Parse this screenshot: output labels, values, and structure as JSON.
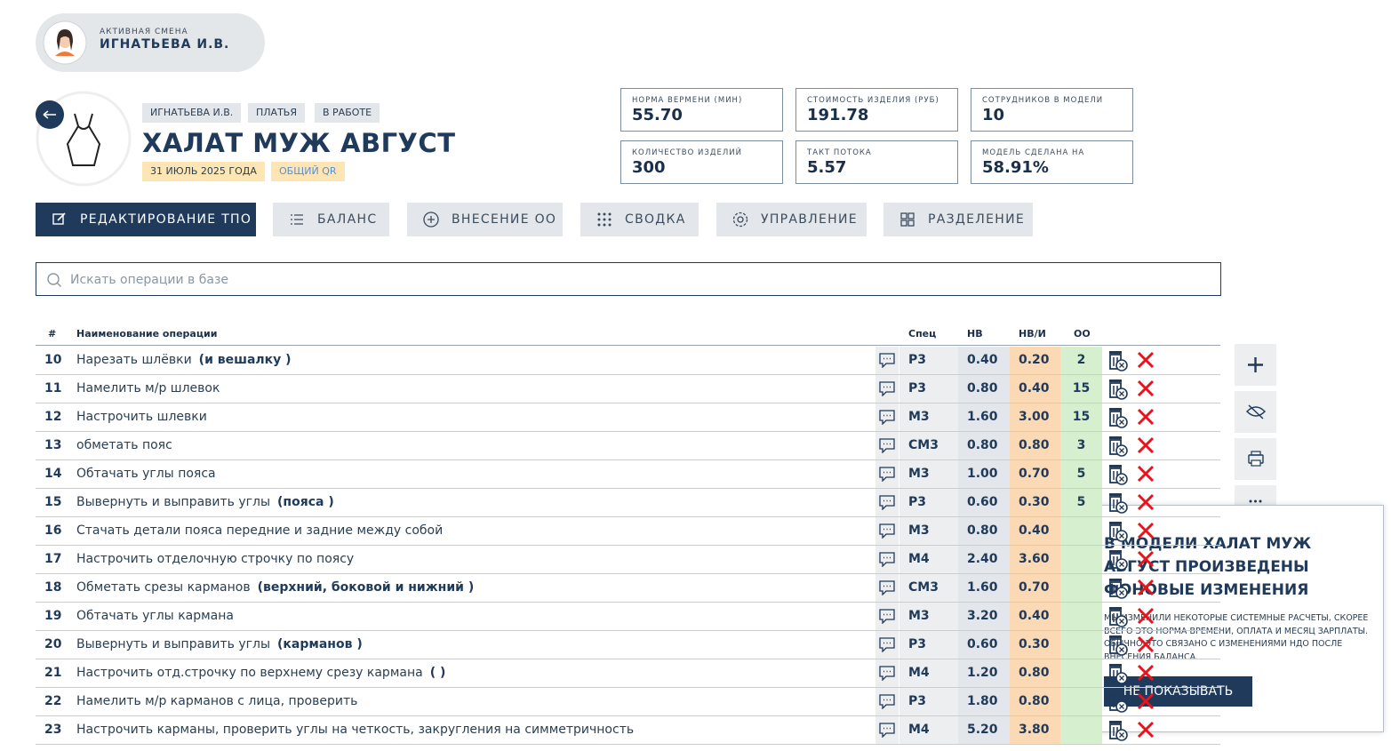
{
  "shift": {
    "label": "АКТИВНАЯ СМЕНА",
    "name": "ИГНАТЬЕВА И.В."
  },
  "model": {
    "tags": [
      "ИГНАТЬЕВА И.В.",
      "ПЛАТЬЯ",
      "В РАБОТЕ"
    ],
    "title": "ХАЛАТ МУЖ АВГУСТ",
    "date": "31 ИЮЛЬ 2025 ГОДА",
    "qr": "ОБЩИЙ QR"
  },
  "stats": [
    {
      "label": "НОРМА ВЕРМЕНИ (МИН)",
      "value": "55.70"
    },
    {
      "label": "СТОИМОСТЬ ИЗДЕЛИЯ (РУБ)",
      "value": "191.78"
    },
    {
      "label": "СОТРУДНИКОВ В МОДЕЛИ",
      "value": "10"
    },
    {
      "label": "КОЛИЧЕСТВО ИЗДЕЛИЙ",
      "value": "300"
    },
    {
      "label": "ТАКТ ПОТОКА",
      "value": "5.57"
    },
    {
      "label": "МОДЕЛЬ СДЕЛАНА НА",
      "value": "58.91%"
    }
  ],
  "tabs": [
    "РЕДАКТИРОВАНИЕ ТПО",
    "БАЛАНС",
    "ВНЕСЕНИЕ ОО",
    "СВОДКА",
    "УПРАВЛЕНИЕ",
    "РАЗДЕЛЕНИЕ"
  ],
  "search": {
    "placeholder": "Искать операции в базе"
  },
  "table": {
    "headers": [
      "#",
      "Наименование операции",
      "Спец",
      "НВ",
      "НВ/И",
      "ОО"
    ],
    "rows": [
      {
        "num": "10",
        "name": "Нарезать шлёвки",
        "note": "(и вешалку )",
        "spec": "Р3",
        "nv": "0.40",
        "nvi": "0.20",
        "oo": "2"
      },
      {
        "num": "11",
        "name": "Намелить м/р шлевок",
        "note": null,
        "spec": "Р3",
        "nv": "0.80",
        "nvi": "0.40",
        "oo": "15"
      },
      {
        "num": "12",
        "name": "Настрочить шлевки",
        "note": null,
        "spec": "М3",
        "nv": "1.60",
        "nvi": "3.00",
        "oo": "15"
      },
      {
        "num": "13",
        "name": "обметать пояс",
        "note": null,
        "spec": "СМ3",
        "nv": "0.80",
        "nvi": "0.80",
        "oo": "3"
      },
      {
        "num": "14",
        "name": "Обтачать углы пояса",
        "note": null,
        "spec": "М3",
        "nv": "1.00",
        "nvi": "0.70",
        "oo": "5"
      },
      {
        "num": "15",
        "name": "Вывернуть и выправить углы",
        "note": "(пояса )",
        "spec": "Р3",
        "nv": "0.60",
        "nvi": "0.30",
        "oo": "5"
      },
      {
        "num": "16",
        "name": "Стачать детали пояса передние и задние между собой",
        "note": null,
        "spec": "М3",
        "nv": "0.80",
        "nvi": "0.40",
        "oo": null
      },
      {
        "num": "17",
        "name": "Настрочить отделочную строчку по поясу",
        "note": null,
        "spec": "М4",
        "nv": "2.40",
        "nvi": "3.60",
        "oo": null
      },
      {
        "num": "18",
        "name": "Обметать срезы карманов",
        "note": "(верхний, боковой и нижний )",
        "spec": "СМ3",
        "nv": "1.60",
        "nvi": "0.70",
        "oo": null
      },
      {
        "num": "19",
        "name": "Обтачать углы кармана",
        "note": null,
        "spec": "М3",
        "nv": "3.20",
        "nvi": "0.40",
        "oo": null
      },
      {
        "num": "20",
        "name": "Вывернуть и выправить углы",
        "note": "(карманов )",
        "spec": "Р3",
        "nv": "0.60",
        "nvi": "0.30",
        "oo": null
      },
      {
        "num": "21",
        "name": "Настрочить отд.строчку по верхнему срезу кармана",
        "note": "( )",
        "spec": "М4",
        "nv": "1.20",
        "nvi": "0.80",
        "oo": null
      },
      {
        "num": "22",
        "name": "Намелить м/р карманов с лица, проверить",
        "note": null,
        "spec": "Р3",
        "nv": "1.80",
        "nvi": "0.80",
        "oo": null
      },
      {
        "num": "23",
        "name": "Настрочить карманы, проверить углы на четкость, закругления на симметричность",
        "note": null,
        "spec": "М4",
        "nv": "5.20",
        "nvi": "3.80",
        "oo": null
      }
    ]
  },
  "popup": {
    "title": "В МОДЕЛИ ХАЛАТ МУЖ АВГУСТ ПРОИЗВЕДЕНЫ ФОНОВЫЕ ИЗМЕНЕНИЯ",
    "text": "МЫ ИЗМЕНИЛИ НЕКОТОРЫЕ СИСТЕМНЫЕ РАСЧЕТЫ, СКОРЕЕ ВСЕГО ЭТО НОРМА ВРЕМЕНИ, ОПЛАТА И МЕСЯЦ ЗАРПЛАТЫ. ОБЫЧНО ЭТО СВЯЗАНО С ИЗМЕНЕНИЯМИ НДО ПОСЛЕ ВНЕСЕНИЯ БАЛАНСА.",
    "button": "НЕ ПОКАЗЫВАТЬ"
  }
}
